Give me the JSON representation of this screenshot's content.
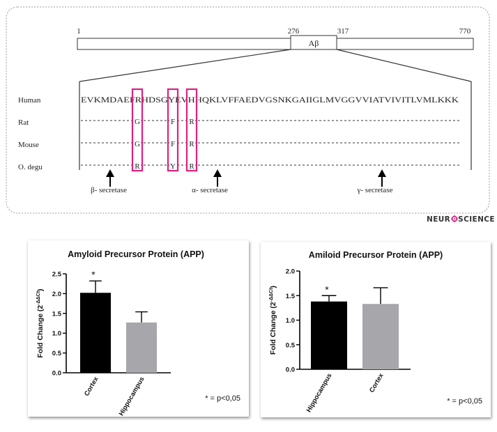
{
  "diagram": {
    "positions": {
      "start": "1",
      "ab_start": "276",
      "ab_end": "317",
      "end": "770"
    },
    "ab_label": "Aβ",
    "species": [
      "Human",
      "Rat",
      "Mouse",
      "O. degu"
    ],
    "human_sequence": "EVKMDAEFRHDSGYEVHHQKLVFFAEDVGSNKGAIIGLMVGGVVIATVIVITLVMLKKK",
    "substitutions": {
      "rat": [
        "G",
        "F",
        "R"
      ],
      "mouse": [
        "G",
        "F",
        "R"
      ],
      "degu": [
        "R",
        "Y",
        "R"
      ]
    },
    "secretases": {
      "beta": "β- secretase",
      "alpha": "α- secretase",
      "gamma": "γ- secretase"
    },
    "highlight_color": "#e0207f"
  },
  "logo": {
    "prefix": "NEUR",
    "suffix": "SCIENCE",
    "accent_color": "#e0207f"
  },
  "chart_data": [
    {
      "type": "bar",
      "title": "Amyloid Precursor Protein (APP)",
      "ylabel": "Fold Change (2^-ΔΔCt)",
      "ylabel_base": "Fold Change (2",
      "ylabel_exp": "-ΔΔCt",
      "ylabel_close": ")",
      "categories": [
        "Cortex",
        "Hippocampus"
      ],
      "values": [
        2.02,
        1.27
      ],
      "errors": [
        0.3,
        0.27
      ],
      "colors": [
        "#000000",
        "#a6a6ab"
      ],
      "significance": [
        "*",
        ""
      ],
      "ylim": [
        0,
        2.5
      ],
      "yticks": [
        "0.0",
        "0.5",
        "1.0",
        "1.5",
        "2.0",
        "2.5"
      ],
      "note": "* = p<0,05"
    },
    {
      "type": "bar",
      "title": "Amiloid Precursor Protein (APP)",
      "ylabel": "Fold Change (2^-ΔΔCt)",
      "ylabel_base": "Fold Change (2",
      "ylabel_exp": "-ΔΔCt",
      "ylabel_close": ")",
      "categories": [
        "Hippocampus",
        "Cortex"
      ],
      "values": [
        1.38,
        1.33
      ],
      "errors": [
        0.12,
        0.33
      ],
      "colors": [
        "#000000",
        "#a6a6ab"
      ],
      "significance": [
        "*",
        ""
      ],
      "ylim": [
        0,
        2.0
      ],
      "yticks": [
        "0.0",
        "0.5",
        "1.0",
        "1.5",
        "2.0"
      ],
      "note": "* = p<0,05"
    }
  ]
}
